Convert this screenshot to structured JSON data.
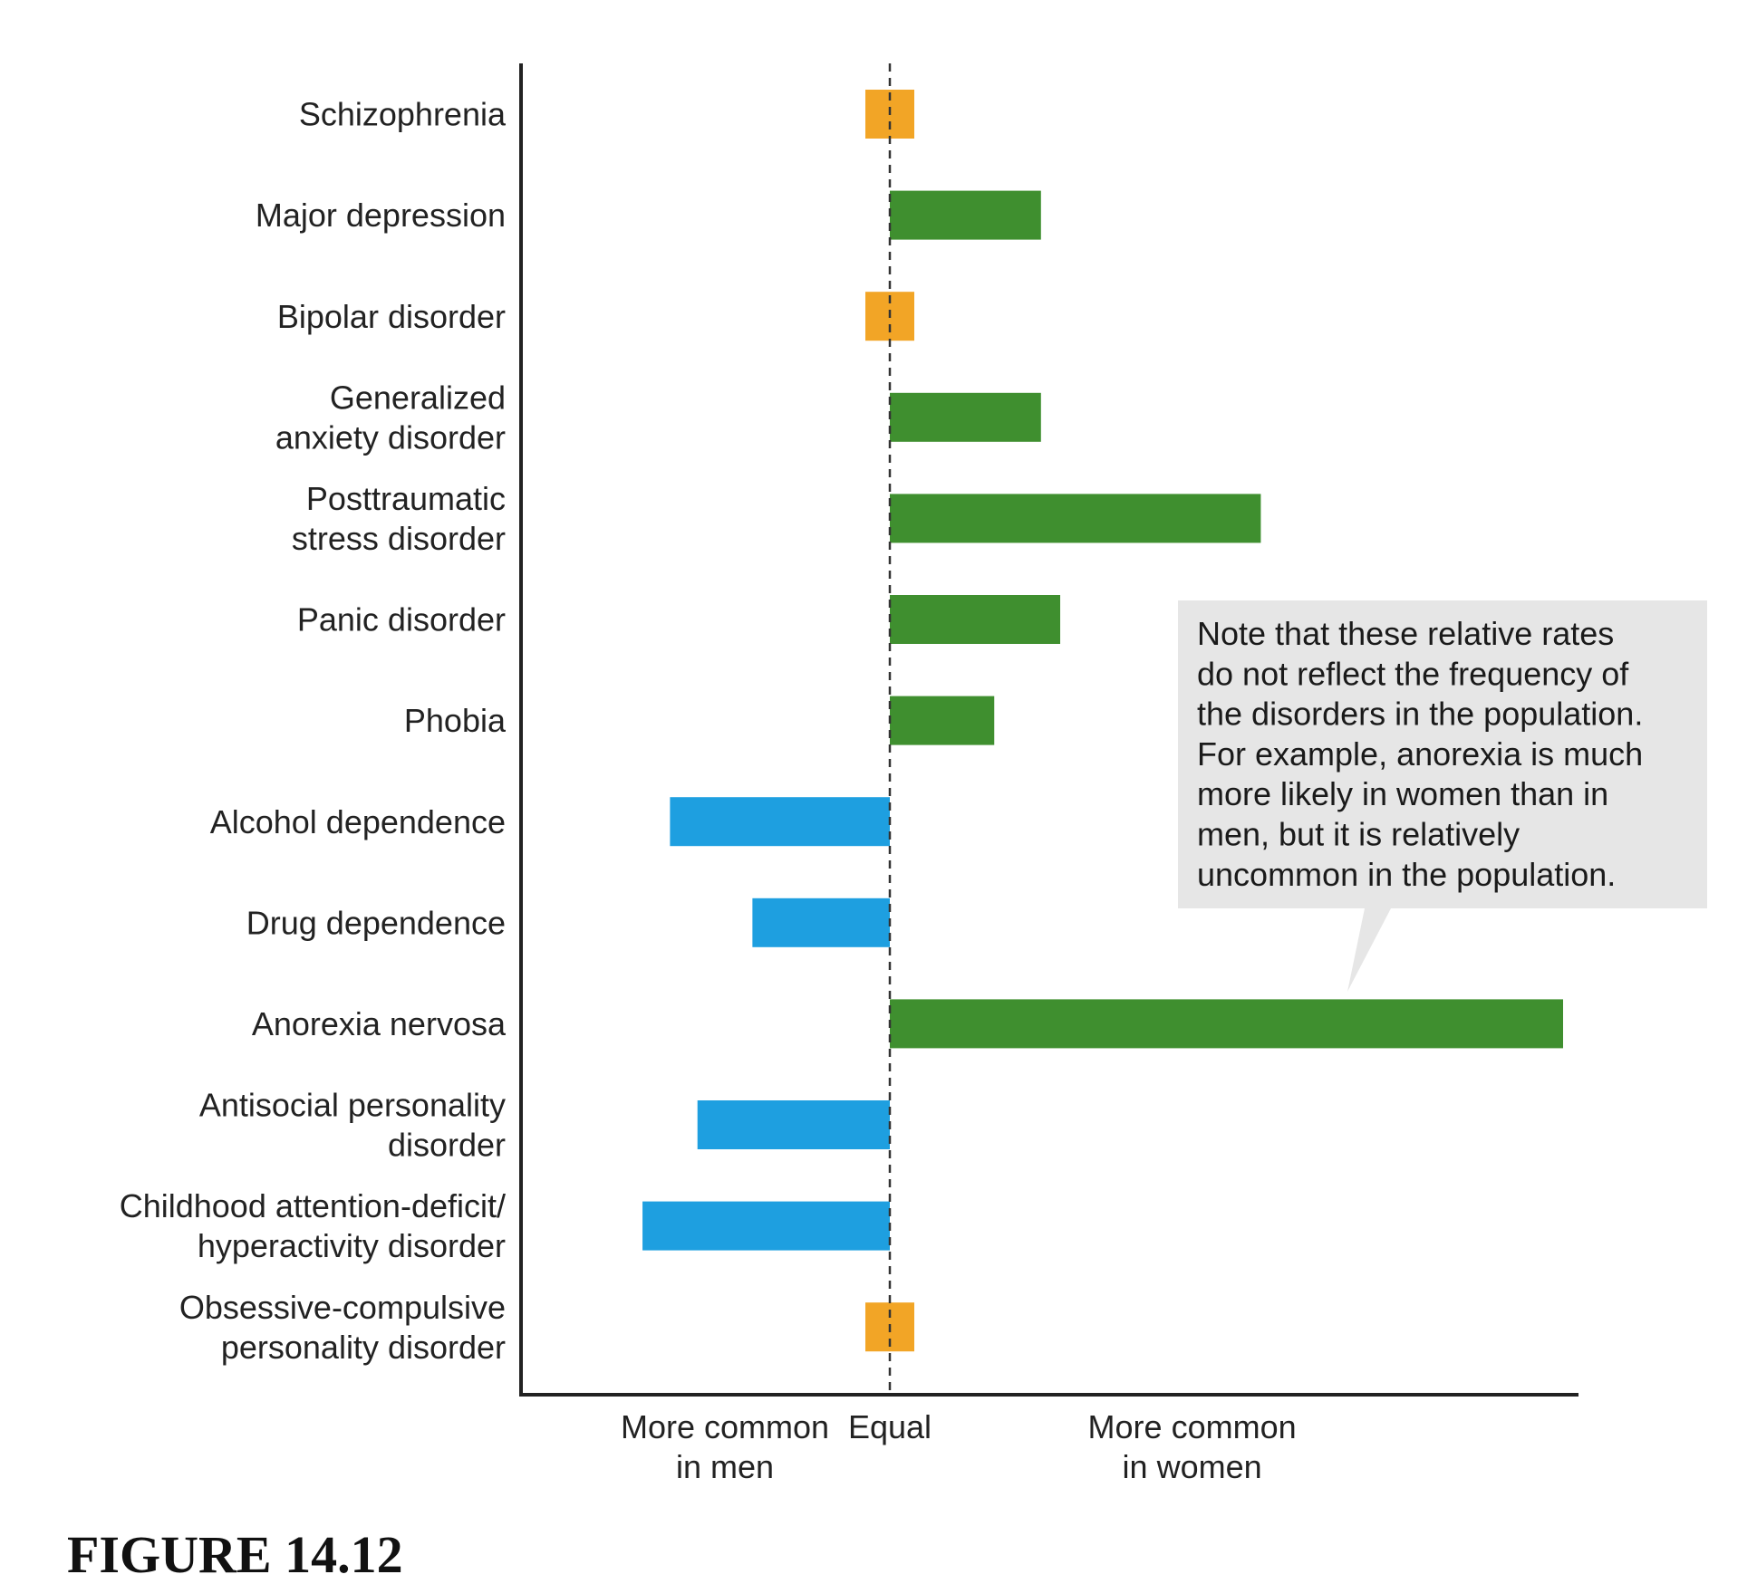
{
  "chart_data": {
    "type": "bar",
    "orientation": "horizontal",
    "title": "",
    "xlabel": "",
    "ylabel": "",
    "x_axis_labels": {
      "left": [
        "More common",
        "in men"
      ],
      "center": [
        "Equal"
      ],
      "right": [
        "More common",
        "in women"
      ]
    },
    "xlim": [
      -1,
      3
    ],
    "grid": false,
    "reference_line": "Equal",
    "categories": [
      [
        "Schizophrenia"
      ],
      [
        "Major depression"
      ],
      [
        "Bipolar disorder"
      ],
      [
        "Generalized",
        "anxiety disorder"
      ],
      [
        "Posttraumatic",
        "stress disorder"
      ],
      [
        "Panic disorder"
      ],
      [
        "Phobia"
      ],
      [
        "Alcohol dependence"
      ],
      [
        "Drug dependence"
      ],
      [
        "Anorexia nervosa"
      ],
      [
        "Antisocial personality",
        "disorder"
      ],
      [
        "Childhood attention-deficit/",
        "hyperactivity disorder"
      ],
      [
        "Obsessive-compulsive",
        "personality disorder"
      ]
    ],
    "values": [
      0,
      0.55,
      0,
      0.55,
      1.35,
      0.62,
      0.38,
      -0.8,
      -0.5,
      2.45,
      -0.7,
      -0.9,
      0
    ],
    "group": [
      "equal",
      "women",
      "equal",
      "women",
      "women",
      "women",
      "women",
      "men",
      "men",
      "women",
      "men",
      "men",
      "equal"
    ],
    "colors": {
      "women": "#3f8f2f",
      "men": "#1e9fe0",
      "equal": "#f2a526"
    },
    "annotation": {
      "lines": [
        "Note that these relative rates",
        "do not reflect the frequency of",
        "the disorders in the population.",
        "For example, anorexia is much",
        "more likely in women than in",
        "men, but it is relatively",
        "uncommon in the population."
      ],
      "points_to": "Anorexia nervosa"
    }
  },
  "figure_caption": "FIGURE 14.12"
}
